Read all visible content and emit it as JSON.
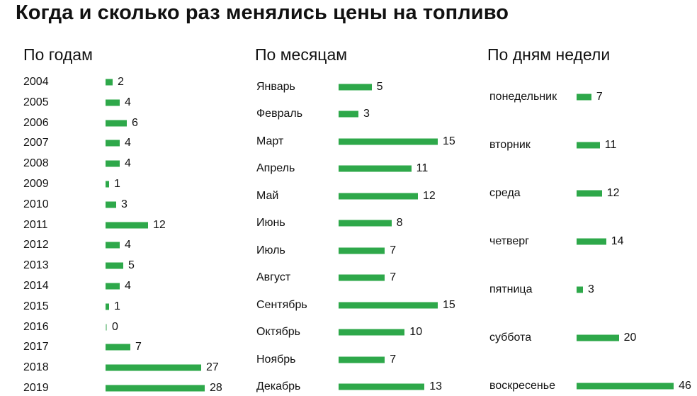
{
  "title": "Когда и сколько раз менялись цены на топливо",
  "colors": {
    "bar": "#2ea84a",
    "text": "#111111"
  },
  "chart_data": [
    {
      "type": "bar",
      "orientation": "horizontal",
      "title": "По годам",
      "categories": [
        "2004",
        "2005",
        "2006",
        "2007",
        "2008",
        "2009",
        "2010",
        "2011",
        "2012",
        "2013",
        "2014",
        "2015",
        "2016",
        "2017",
        "2018",
        "2019"
      ],
      "values": [
        2,
        4,
        6,
        4,
        4,
        1,
        3,
        12,
        4,
        5,
        4,
        1,
        0,
        7,
        27,
        28
      ]
    },
    {
      "type": "bar",
      "orientation": "horizontal",
      "title": "По месяцам",
      "categories": [
        "Январь",
        "Февраль",
        "Март",
        "Апрель",
        "Май",
        "Июнь",
        "Июль",
        "Август",
        "Сентябрь",
        "Октябрь",
        "Ноябрь",
        "Декабрь"
      ],
      "values": [
        5,
        3,
        15,
        11,
        12,
        8,
        7,
        7,
        15,
        10,
        7,
        13
      ]
    },
    {
      "type": "bar",
      "orientation": "horizontal",
      "title": "По дням недели",
      "categories": [
        "понедельник",
        "вторник",
        "среда",
        "четверг",
        "пятница",
        "суббота",
        "воскресенье"
      ],
      "values": [
        7,
        11,
        12,
        14,
        3,
        20,
        46
      ]
    }
  ]
}
